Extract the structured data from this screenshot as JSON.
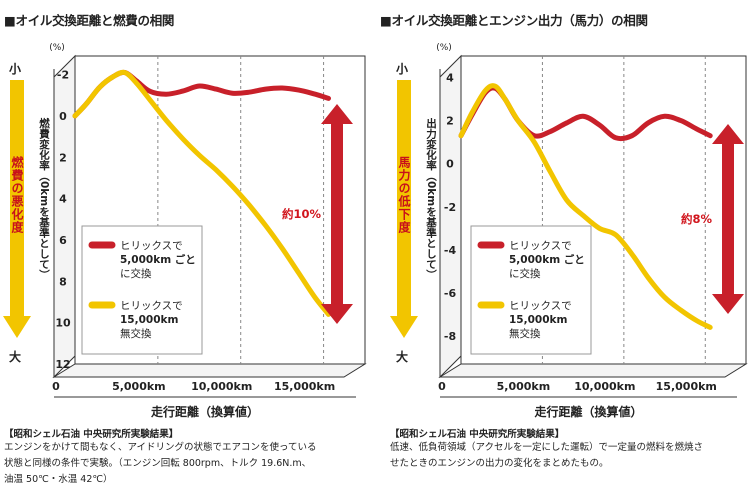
{
  "charts_meta": {
    "left": {
      "panel_title": "■オイル交換距離と燃費の相関",
      "y_unit": "(%)",
      "side_top": "小",
      "side_bottom": "大",
      "side_label": "燃費の悪化度",
      "y_title": "燃費変化率（0kmを基準として）",
      "difference_label": "約10%",
      "note_title": "【昭和シェル石油 中央研究所実験結果】",
      "note_body": "エンジンをかけて間もなく、アイドリングの状態でエアコンを使っている\n状態と同様の条件で実験。（エンジン回転 800rpm、トルク 19.6N.m、\n油温 50℃・水温 42℃）",
      "colors": {
        "red": "#c8202a",
        "yellow": "#f2c500",
        "arrow": "#d1151d",
        "side_arrow": "#f2c500"
      }
    },
    "right": {
      "panel_title": "■オイル交換距離とエンジン出力（馬力）の相関",
      "y_unit": "(%)",
      "side_top": "小",
      "side_bottom": "大",
      "side_label": "馬力の低下度",
      "y_title": "出力変化率（0kmを基準として）",
      "difference_label": "約8%",
      "note_title": "【昭和シェル石油 中央研究所実験結果】",
      "note_body": "低速、低負荷領域（アクセルを一定にした運転）で一定量の燃料を燃焼さ\nせたときのエンジンの出力の変化をまとめたもの。",
      "colors": {
        "red": "#c8202a",
        "yellow": "#f2c500",
        "arrow": "#d1151d",
        "side_arrow": "#f2c500"
      }
    }
  },
  "chart_data": [
    {
      "type": "line",
      "title": "オイル交換距離と燃費の相関",
      "xlabel": "走行距離（換算値）",
      "ylabel": "燃費変化率（0kmを基準として）",
      "x_ticks": [
        0,
        5000,
        10000,
        15000
      ],
      "x_tick_labels": [
        "0",
        "5,000km",
        "10,000km",
        "15,000km"
      ],
      "xlim": [
        0,
        17500
      ],
      "y_ticks": [
        -2,
        0,
        2,
        4,
        6,
        8,
        10,
        12
      ],
      "y_tick_labels": [
        "-2",
        "0",
        "2",
        "4",
        "6",
        "8",
        "10",
        "12"
      ],
      "ylim": [
        -2.9,
        12
      ],
      "y_inverted": true,
      "series": [
        {
          "name": "ヒリックスで 5,000km ごとに交換",
          "legend_lines": [
            "ヒリックスで",
            "5,000km ごと",
            "に交換"
          ],
          "color": "red",
          "x": [
            0,
            700,
            1500,
            2300,
            3000,
            3700,
            4500,
            5500,
            6500,
            7500,
            8500,
            9500,
            10500,
            11500,
            12500,
            13500,
            14500,
            15300
          ],
          "y": [
            0.0,
            -0.6,
            -1.4,
            -1.9,
            -2.1,
            -1.7,
            -1.2,
            -1.05,
            -1.2,
            -1.45,
            -1.3,
            -1.1,
            -1.15,
            -1.3,
            -1.35,
            -1.25,
            -1.05,
            -0.85
          ]
        },
        {
          "name": "ヒリックスで 15,000km 無交換",
          "legend_lines": [
            "ヒリックスで",
            "15,000km",
            "無交換"
          ],
          "color": "yellow",
          "x": [
            0,
            700,
            1500,
            2300,
            3000,
            3700,
            4500,
            5500,
            6500,
            7500,
            8500,
            9500,
            10500,
            11500,
            12500,
            13500,
            14500,
            15300
          ],
          "y": [
            0.0,
            -0.6,
            -1.4,
            -1.9,
            -2.1,
            -1.6,
            -0.8,
            0.2,
            1.1,
            1.9,
            2.6,
            3.4,
            4.3,
            5.3,
            6.4,
            7.6,
            8.8,
            9.6
          ]
        }
      ]
    },
    {
      "type": "line",
      "title": "オイル交換距離とエンジン出力（馬力）の相関",
      "xlabel": "走行距離（換算値）",
      "ylabel": "出力変化率（0kmを基準として）",
      "x_ticks": [
        0,
        5000,
        10000,
        15000
      ],
      "x_tick_labels": [
        "0",
        "5,000km",
        "10,000km",
        "15,000km"
      ],
      "xlim": [
        0,
        17500
      ],
      "y_ticks": [
        4,
        2,
        0,
        -2,
        -4,
        -6,
        -8
      ],
      "y_tick_labels": [
        "4",
        "2",
        "0",
        "-2",
        "-4",
        "-6",
        "-8"
      ],
      "ylim": [
        -9.3,
        5
      ],
      "y_inverted": false,
      "series": [
        {
          "name": "ヒリックスで 5,000km ごとに交換",
          "legend_lines": [
            "ヒリックスで",
            "5,000km ごと",
            "に交換"
          ],
          "color": "red",
          "x": [
            0,
            700,
            1500,
            2100,
            2700,
            3500,
            4500,
            5500,
            6500,
            7500,
            8500,
            9500,
            10500,
            11500,
            12500,
            13500,
            14500,
            15300
          ],
          "y": [
            1.3,
            2.3,
            3.3,
            3.5,
            3.0,
            2.0,
            1.3,
            1.5,
            1.9,
            2.2,
            1.8,
            1.2,
            1.3,
            1.9,
            2.2,
            2.0,
            1.6,
            1.3
          ]
        },
        {
          "name": "ヒリックスで 15,000km 無交換",
          "legend_lines": [
            "ヒリックスで",
            "15,000km",
            "無交換"
          ],
          "color": "yellow",
          "x": [
            0,
            700,
            1500,
            2100,
            2700,
            3500,
            4500,
            5500,
            6500,
            7500,
            8500,
            9500,
            10500,
            11500,
            12500,
            13500,
            14500,
            15300
          ],
          "y": [
            1.3,
            2.4,
            3.4,
            3.6,
            3.0,
            2.0,
            1.0,
            -0.4,
            -1.7,
            -2.4,
            -3.0,
            -3.3,
            -4.2,
            -5.3,
            -6.2,
            -6.8,
            -7.3,
            -7.6
          ]
        }
      ]
    }
  ]
}
